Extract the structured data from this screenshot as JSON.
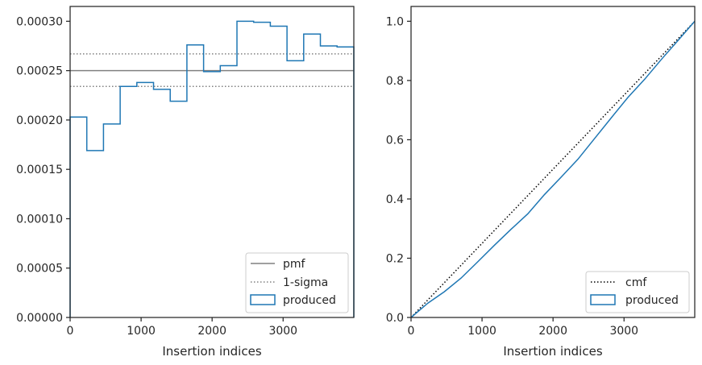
{
  "chart_data": [
    {
      "type": "histogram",
      "xlabel": "Insertion indices",
      "ylabel": "",
      "xlim": [
        0,
        3996
      ],
      "ylim": [
        0,
        0.000315
      ],
      "x_ticks": [
        0,
        1000,
        2000,
        3000
      ],
      "x_tick_labels": [
        "0",
        "1000",
        "2000",
        "3000"
      ],
      "y_ticks": [
        0,
        5e-05,
        0.0001,
        0.00015,
        0.0002,
        0.00025,
        0.0003
      ],
      "y_tick_labels": [
        "0.00000",
        "0.00005",
        "0.00010",
        "0.00015",
        "0.00020",
        "0.00025",
        "0.00030"
      ],
      "legend_position": "lower right",
      "legend": [
        {
          "label": "pmf",
          "style": "solid-line",
          "color": "#808080"
        },
        {
          "label": "1-sigma",
          "style": "dotted-line",
          "color": "#808080"
        },
        {
          "label": "produced",
          "style": "step-patch",
          "color": "#1f77b4"
        }
      ],
      "hlines": [
        {
          "name": "pmf",
          "y": 0.00025,
          "style": "solid",
          "color": "#808080"
        },
        {
          "name": "1-sigma",
          "y": 0.000267,
          "style": "dotted",
          "color": "#808080"
        },
        {
          "name": "1-sigma",
          "y": 0.000234,
          "style": "dotted",
          "color": "#808080"
        }
      ],
      "series": [
        {
          "name": "produced",
          "color": "#1f77b4",
          "bin_edges": [
            0,
            235,
            470,
            705,
            940,
            1175,
            1410,
            1645,
            1880,
            2115,
            2350,
            2585,
            2820,
            3055,
            3290,
            3525,
            3760,
            3996
          ],
          "values": [
            0.000203,
            0.000169,
            0.000196,
            0.000234,
            0.000238,
            0.000231,
            0.000219,
            0.000276,
            0.000249,
            0.000255,
            0.0003,
            0.000299,
            0.000295,
            0.00026,
            0.000287,
            0.000275,
            0.000274
          ]
        }
      ]
    },
    {
      "type": "line",
      "xlabel": "Insertion indices",
      "ylabel": "",
      "xlim": [
        0,
        3996
      ],
      "ylim": [
        0,
        1.05
      ],
      "x_ticks": [
        0,
        1000,
        2000,
        3000
      ],
      "x_tick_labels": [
        "0",
        "1000",
        "2000",
        "3000"
      ],
      "y_ticks": [
        0,
        0.2,
        0.4,
        0.6,
        0.8,
        1.0
      ],
      "y_tick_labels": [
        "0.0",
        "0.2",
        "0.4",
        "0.6",
        "0.8",
        "1.0"
      ],
      "legend_position": "lower right",
      "legend": [
        {
          "label": "cmf",
          "style": "dotted-line",
          "color": "#000000"
        },
        {
          "label": "produced",
          "style": "step-patch",
          "color": "#1f77b4"
        }
      ],
      "series": [
        {
          "name": "cmf",
          "style": "dotted",
          "color": "#000000",
          "x": [
            0,
            3996
          ],
          "y": [
            0,
            1.0
          ]
        },
        {
          "name": "produced",
          "style": "solid",
          "color": "#1f77b4",
          "x": [
            0,
            235,
            470,
            705,
            940,
            1175,
            1410,
            1645,
            1880,
            2115,
            2350,
            2585,
            2820,
            3055,
            3290,
            3525,
            3760,
            3996
          ],
          "y": [
            0,
            0.048,
            0.087,
            0.133,
            0.188,
            0.244,
            0.298,
            0.35,
            0.415,
            0.474,
            0.534,
            0.604,
            0.674,
            0.743,
            0.804,
            0.871,
            0.935,
            1.0
          ]
        }
      ]
    }
  ]
}
